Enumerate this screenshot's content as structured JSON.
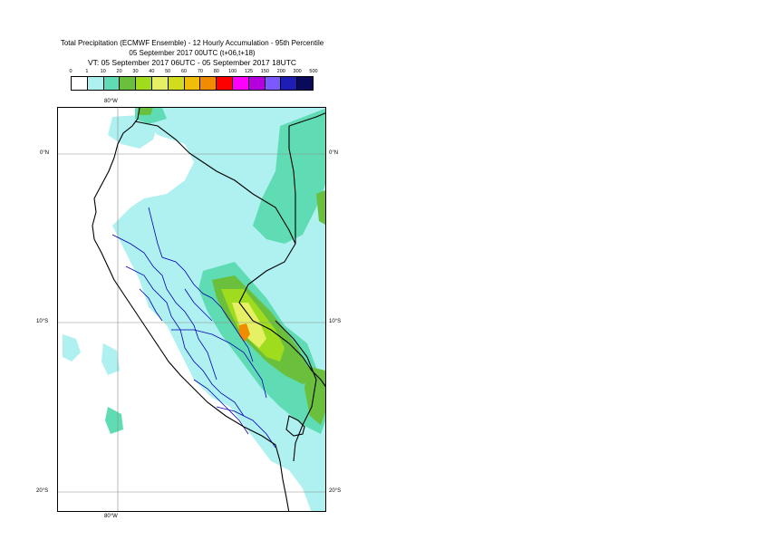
{
  "header": {
    "title_line1": "Total Precipitation (ECMWF Ensemble) - 12 Hourly Accumulation - 95th Percentile",
    "title_line2": "05 September 2017 00UTC (t+06,t+18)",
    "title_line3": "VT: 05 September 2017 06UTC - 05 September 2017 18UTC"
  },
  "legend": {
    "labels": [
      "0",
      "1",
      "10",
      "20",
      "30",
      "40",
      "50",
      "60",
      "70",
      "80",
      "100",
      "125",
      "150",
      "200",
      "300",
      "500"
    ],
    "colors": [
      "#ffffff",
      "#aff0f0",
      "#5fdcb4",
      "#6abf3c",
      "#a0dc1e",
      "#e6f064",
      "#d2dc1e",
      "#f0be0a",
      "#f08c00",
      "#ff0000",
      "#ff00ff",
      "#b400dc",
      "#7a5aff",
      "#1e1eb4",
      "#0a0a5a"
    ]
  },
  "map": {
    "lon_label_top": "80°W",
    "lon_label_bottom": "80°W",
    "lat_labels_left": [
      "0°N",
      "10°S",
      "20°S"
    ],
    "lat_labels_right": [
      "0°N",
      "10°S",
      "20°S"
    ],
    "colors": {
      "light": "#aff0f0",
      "medium": "#5fdcb4",
      "green": "#6abf3c",
      "lime": "#a0dc1e",
      "yellow": "#e6f064",
      "orange": "#f08c00",
      "coast": "#000000",
      "admin": "#0000b4",
      "grid": "#8c8c8c"
    }
  }
}
